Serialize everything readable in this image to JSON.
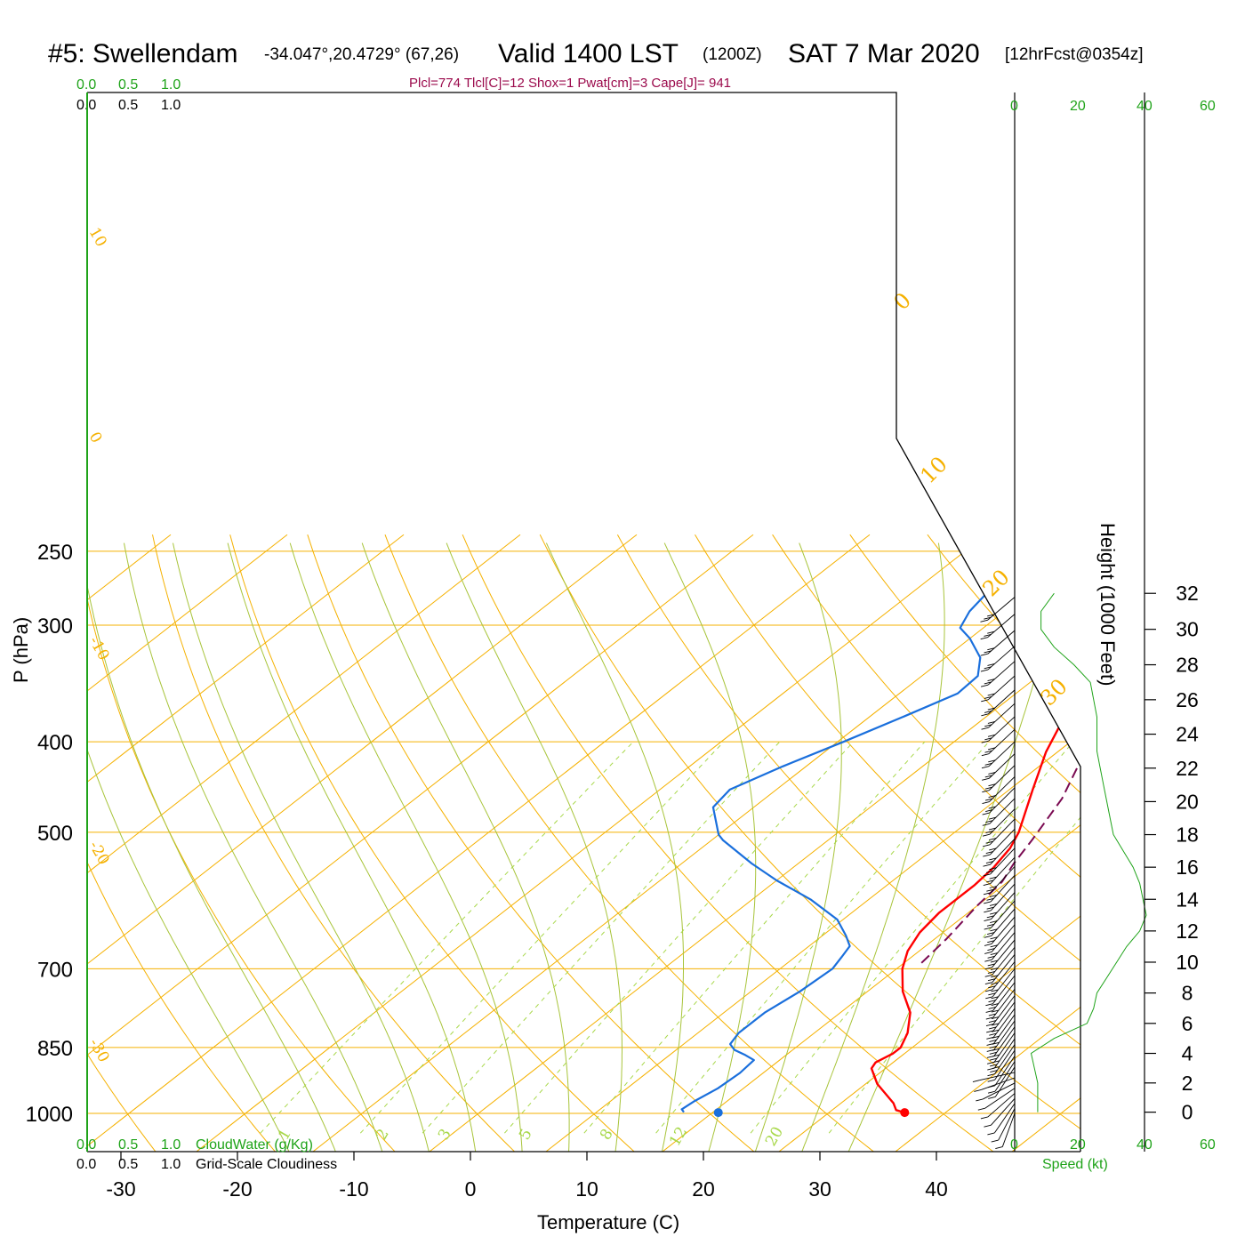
{
  "header": {
    "station": "#5: Swellendam",
    "coords": "-34.047°,20.4729° (67,26)",
    "valid": "Valid 1400 LST",
    "zulu": "(1200Z)",
    "date": "SAT 7 Mar 2020",
    "forecast": "[12hrFcst@0354z]"
  },
  "indices_line": "Plcl=774 Tlcl[C]=12 Shox=1 Pwat[cm]=3 Cape[J]= 941",
  "top_scale": {
    "green": [
      "0.0",
      "0.5",
      "1.0"
    ],
    "black": [
      "0.0",
      "0.5",
      "1.0"
    ]
  },
  "bottom_scale": {
    "green": [
      "0.0",
      "0.5",
      "1.0"
    ],
    "green_label": "CloudWater (g/Kg)",
    "black": [
      "0.0",
      "0.5",
      "1.0"
    ],
    "black_label": "Grid-Scale Cloudiness"
  },
  "wind_scale": {
    "ticks": [
      "0",
      "20",
      "40",
      "60"
    ],
    "label": "Speed (kt)"
  },
  "colors": {
    "temperature": "#ff0000",
    "dewpoint": "#1a6fdc",
    "parcel": "#7a0a52",
    "isotherm": "#f5b100",
    "dry_adiabat": "#f5b100",
    "moist_adiabat": "#a8c43a",
    "mixing_ratio": "#a8d84a",
    "wind_speed": "#1fa319"
  },
  "chart_data": {
    "type": "line",
    "title": "#5: Swellendam",
    "xlabel": "Temperature (C)",
    "ylabel": "P (hPa)",
    "y2label": "Height (1000 Feet)",
    "xlim": [
      -35,
      40
    ],
    "ylim": [
      1000,
      250
    ],
    "y_scale": "log",
    "pressure_ticks": [
      250,
      300,
      400,
      500,
      700,
      850,
      1000
    ],
    "pressure_tick_labels": [
      "250",
      "300",
      "400",
      "500",
      "700",
      "850",
      "1000"
    ],
    "temperature_ticks": [
      -30,
      -20,
      -10,
      0,
      10,
      20,
      30,
      40
    ],
    "temperature_tick_labels": [
      "-30",
      "-20",
      "-10",
      "0",
      "10",
      "20",
      "30",
      "40"
    ],
    "height_ticks": [
      0,
      2,
      4,
      6,
      8,
      10,
      12,
      14,
      16,
      18,
      20,
      22,
      24,
      26,
      28,
      30,
      32
    ],
    "height_tick_labels": [
      "0",
      "2",
      "4",
      "6",
      "8",
      "10",
      "12",
      "14",
      "16",
      "18",
      "20",
      "22",
      "24",
      "26",
      "28",
      "30",
      "32"
    ],
    "isotherm_labels": [
      "10",
      "0",
      "-10",
      "-20",
      "-30"
    ],
    "theta_labels": [
      "0",
      "10",
      "20",
      "30"
    ],
    "mixing_ratio_labels": [
      "1",
      "2",
      "3",
      "5",
      "8",
      "12",
      "20"
    ],
    "grid": true,
    "series": [
      {
        "name": "Temperature",
        "points": [
          [
            36.5,
            998
          ],
          [
            35.5,
            992
          ],
          [
            34.5,
            975
          ],
          [
            31.0,
            930
          ],
          [
            28.8,
            895
          ],
          [
            28.5,
            882
          ],
          [
            29.0,
            863
          ],
          [
            29.0,
            850
          ],
          [
            28.0,
            820
          ],
          [
            26.0,
            780
          ],
          [
            23.0,
            740
          ],
          [
            20.5,
            700
          ],
          [
            19.0,
            670
          ],
          [
            18.0,
            640
          ],
          [
            17.5,
            610
          ],
          [
            17.5,
            570
          ],
          [
            17.2,
            545
          ],
          [
            16.5,
            520
          ],
          [
            15.5,
            500
          ],
          [
            12.0,
            450
          ],
          [
            9.0,
            410
          ],
          [
            7.0,
            380
          ],
          [
            4.0,
            345
          ],
          [
            2.0,
            320
          ],
          [
            0.5,
            300
          ],
          [
            -1.5,
            280
          ],
          [
            -3.2,
            263
          ]
        ]
      },
      {
        "name": "Dewpoint",
        "points": [
          [
            17.5,
            997
          ],
          [
            17.0,
            990
          ],
          [
            17.2,
            970
          ],
          [
            17.8,
            940
          ],
          [
            18.0,
            905
          ],
          [
            17.8,
            877
          ],
          [
            16.5,
            866
          ],
          [
            15.0,
            855
          ],
          [
            14.0,
            843
          ],
          [
            13.5,
            820
          ],
          [
            13.5,
            780
          ],
          [
            14.2,
            740
          ],
          [
            14.5,
            700
          ],
          [
            14.0,
            680
          ],
          [
            13.5,
            662
          ],
          [
            12.0,
            645
          ],
          [
            9.5,
            620
          ],
          [
            5.0,
            590
          ],
          [
            0.0,
            563
          ],
          [
            -4.0,
            540
          ],
          [
            -9.0,
            510
          ],
          [
            -10.0,
            503
          ],
          [
            -13.5,
            470
          ],
          [
            -14.0,
            450
          ],
          [
            -12.0,
            425
          ],
          [
            -9.5,
            400
          ],
          [
            -7.0,
            375
          ],
          [
            -5.0,
            355
          ],
          [
            -5.2,
            340
          ],
          [
            -7.0,
            325
          ],
          [
            -10.0,
            310
          ],
          [
            -12.0,
            302
          ],
          [
            -13.0,
            290
          ],
          [
            -13.5,
            278
          ],
          [
            -12.0,
            270
          ],
          [
            -11.5,
            263
          ]
        ]
      },
      {
        "name": "Parcel",
        "points": [
          [
            21.5,
            690
          ],
          [
            21.0,
            650
          ],
          [
            20.0,
            600
          ],
          [
            19.5,
            565
          ],
          [
            18.5,
            540
          ],
          [
            17.5,
            510
          ],
          [
            15.5,
            460
          ],
          [
            13.0,
            420
          ],
          [
            10.5,
            380
          ],
          [
            8.0,
            345
          ],
          [
            6.0,
            318
          ],
          [
            4.0,
            295
          ],
          [
            2.0,
            275
          ],
          [
            0.0,
            262
          ]
        ]
      }
    ],
    "surface_points": [
      {
        "name": "Surface temperature",
        "temp": 36.5,
        "pressure": 998
      },
      {
        "name": "Surface dewpoint",
        "temp": 20.5,
        "pressure": 998
      }
    ],
    "cloud_water": [],
    "wind_profile_speed_kt": [
      [
        0,
        7
      ],
      [
        1,
        7
      ],
      [
        2,
        7
      ],
      [
        3,
        6
      ],
      [
        4,
        5
      ],
      [
        5,
        12
      ],
      [
        6,
        22
      ],
      [
        7,
        24
      ],
      [
        8,
        25
      ],
      [
        9,
        28
      ],
      [
        10,
        31
      ],
      [
        11,
        34
      ],
      [
        12,
        38
      ],
      [
        13,
        40
      ],
      [
        14,
        39
      ],
      [
        15,
        38
      ],
      [
        16,
        36
      ],
      [
        17,
        33
      ],
      [
        18,
        30
      ],
      [
        19,
        29
      ],
      [
        20,
        28
      ],
      [
        21,
        27
      ],
      [
        22,
        26
      ],
      [
        23,
        25
      ],
      [
        24,
        25
      ],
      [
        25,
        25
      ],
      [
        26,
        24
      ],
      [
        27,
        23
      ],
      [
        28,
        18
      ],
      [
        29,
        12
      ],
      [
        30,
        8
      ],
      [
        31,
        8
      ],
      [
        32,
        12
      ]
    ]
  }
}
